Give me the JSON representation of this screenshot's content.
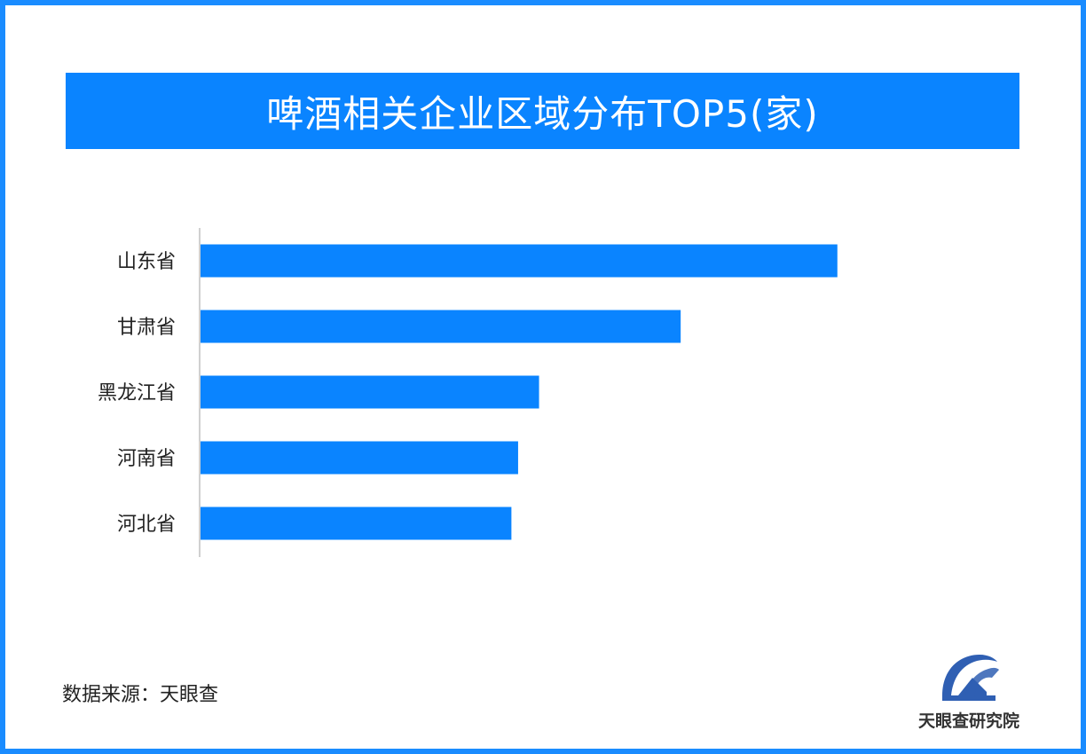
{
  "colors": {
    "frame": "#1a8cff",
    "banner": "#0a84ff",
    "bar": "#0a84ff",
    "logo": "#2f5fb3"
  },
  "source_label": "数据来源：天眼查",
  "brand": {
    "logo_icon": "tianyancha-logo-icon",
    "name": "天眼查研究院"
  },
  "chart_data": {
    "type": "bar",
    "orientation": "horizontal",
    "title": "啤酒相关企业区域分布TOP5(家)",
    "categories": [
      "山东省",
      "甘肃省",
      "黑龙江省",
      "河南省",
      "河北省"
    ],
    "values": [
      760,
      573,
      404,
      379,
      371
    ],
    "xlim": [
      0,
      900
    ],
    "grid": false,
    "legend": "none",
    "data_labels": false
  }
}
